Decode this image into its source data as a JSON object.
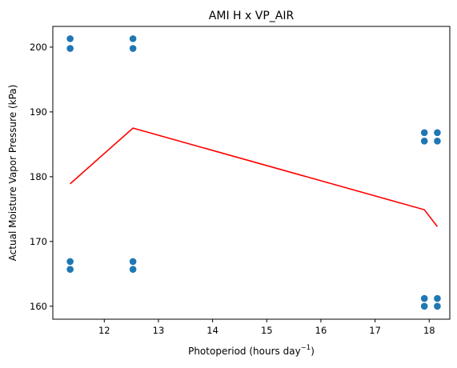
{
  "chart_data": {
    "type": "scatter",
    "title": "AMI H x VP_AIR",
    "xlabel": "Photoperiod (hours day",
    "xlabel_sup": "−1",
    "xlabel_close": ")",
    "ylabel": "Actual Moisture Vapor Pressure (kPa)",
    "xlim": [
      11.05,
      18.38
    ],
    "ylim": [
      158.0,
      203.2
    ],
    "xticks": [
      "12",
      "13",
      "14",
      "15",
      "16",
      "17",
      "18"
    ],
    "yticks": [
      "160",
      "170",
      "180",
      "190",
      "200"
    ],
    "grid": false,
    "legend": "none",
    "series": [
      {
        "kind": "scatter",
        "color": "#1f77b4",
        "points": [
          [
            11.37,
            201.3
          ],
          [
            11.37,
            199.8
          ],
          [
            12.53,
            201.3
          ],
          [
            12.53,
            199.8
          ],
          [
            11.37,
            166.9
          ],
          [
            11.37,
            165.7
          ],
          [
            12.53,
            166.9
          ],
          [
            12.53,
            165.7
          ],
          [
            17.91,
            186.8
          ],
          [
            17.91,
            185.5
          ],
          [
            18.15,
            186.8
          ],
          [
            18.15,
            185.5
          ],
          [
            17.91,
            161.2
          ],
          [
            17.91,
            160.0
          ],
          [
            18.15,
            161.2
          ],
          [
            18.15,
            160.0
          ]
        ]
      },
      {
        "kind": "line",
        "color": "#ff0000",
        "points": [
          [
            11.37,
            178.9
          ],
          [
            12.53,
            187.5
          ],
          [
            17.91,
            174.9
          ],
          [
            18.15,
            172.3
          ]
        ]
      }
    ]
  }
}
